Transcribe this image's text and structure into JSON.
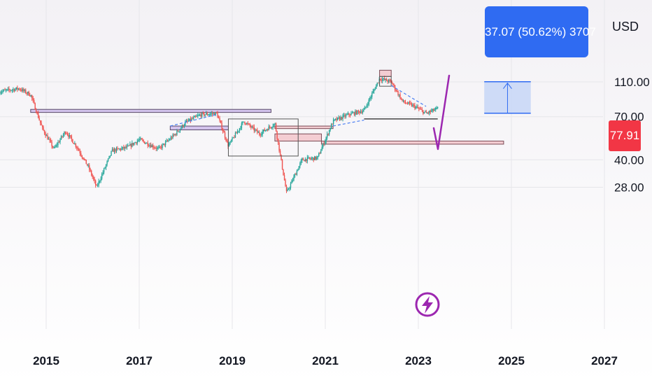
{
  "chart_data": {
    "type": "candlestick",
    "currency": "USD",
    "y_scale": "log",
    "y_ticks": [
      "110.00",
      "70.00",
      "40.00",
      "28.00"
    ],
    "x_ticks": [
      "2015",
      "2017",
      "2019",
      "2021",
      "2023",
      "2025",
      "2027"
    ],
    "last_price": "77.91",
    "measure_label": "37.07 (50.62%) 3707",
    "colors": {
      "up": "#26a69a",
      "down": "#ef5350",
      "zone_purple": "#c9b6e8",
      "zone_red": "#f3c3c8",
      "measure": "#2f6bf2",
      "arrow": "#9c27b0",
      "last_price": "#f23645"
    },
    "price_path": [
      {
        "date": "2014-01",
        "price": 97
      },
      {
        "date": "2014-06",
        "price": 101
      },
      {
        "date": "2014-09",
        "price": 93
      },
      {
        "date": "2014-12",
        "price": 60
      },
      {
        "date": "2015-03",
        "price": 46
      },
      {
        "date": "2015-06",
        "price": 58
      },
      {
        "date": "2015-09",
        "price": 47
      },
      {
        "date": "2015-12",
        "price": 36
      },
      {
        "date": "2016-02",
        "price": 28
      },
      {
        "date": "2016-06",
        "price": 45
      },
      {
        "date": "2016-10",
        "price": 47
      },
      {
        "date": "2017-01",
        "price": 52
      },
      {
        "date": "2017-06",
        "price": 46
      },
      {
        "date": "2017-10",
        "price": 55
      },
      {
        "date": "2018-01",
        "price": 65
      },
      {
        "date": "2018-05",
        "price": 72
      },
      {
        "date": "2018-09",
        "price": 73
      },
      {
        "date": "2018-12",
        "price": 48
      },
      {
        "date": "2019-04",
        "price": 66
      },
      {
        "date": "2019-08",
        "price": 56
      },
      {
        "date": "2019-12",
        "price": 64
      },
      {
        "date": "2020-03",
        "price": 26
      },
      {
        "date": "2020-07",
        "price": 40
      },
      {
        "date": "2020-11",
        "price": 41
      },
      {
        "date": "2021-03",
        "price": 66
      },
      {
        "date": "2021-07",
        "price": 72
      },
      {
        "date": "2021-11",
        "price": 76
      },
      {
        "date": "2022-03",
        "price": 115
      },
      {
        "date": "2022-06",
        "price": 110
      },
      {
        "date": "2022-09",
        "price": 85
      },
      {
        "date": "2022-12",
        "price": 80
      },
      {
        "date": "2023-03",
        "price": 73
      },
      {
        "date": "2023-06",
        "price": 77.91
      }
    ],
    "zones": [
      {
        "kind": "purple",
        "from": "2014-09",
        "to": "2019-11",
        "low": 74,
        "high": 77
      },
      {
        "kind": "purple",
        "from": "2017-09",
        "to": "2018-12",
        "low": 59,
        "high": 62
      },
      {
        "kind": "red",
        "from": "2019-12",
        "to": "2021-03",
        "low": 60,
        "high": 62
      },
      {
        "kind": "red",
        "from": "2019-12",
        "to": "2020-12",
        "low": 51,
        "high": 56
      },
      {
        "kind": "red",
        "from": "2020-12",
        "to": "2024-11",
        "low": 49,
        "high": 51
      },
      {
        "kind": "red",
        "from": "2022-03",
        "to": "2022-06",
        "low": 118,
        "high": 128
      }
    ],
    "boxes": [
      {
        "from": "2018-12",
        "to": "2020-06",
        "low": 42,
        "high": 68
      },
      {
        "from": "2022-03",
        "to": "2022-06",
        "low": 104,
        "high": 118
      }
    ],
    "support_line": {
      "from": "2021-11",
      "to": "2023-06",
      "price": 68
    },
    "measure": {
      "from": "2024-06",
      "to": "2025-06",
      "low": 73.2,
      "high": 110.3
    }
  }
}
